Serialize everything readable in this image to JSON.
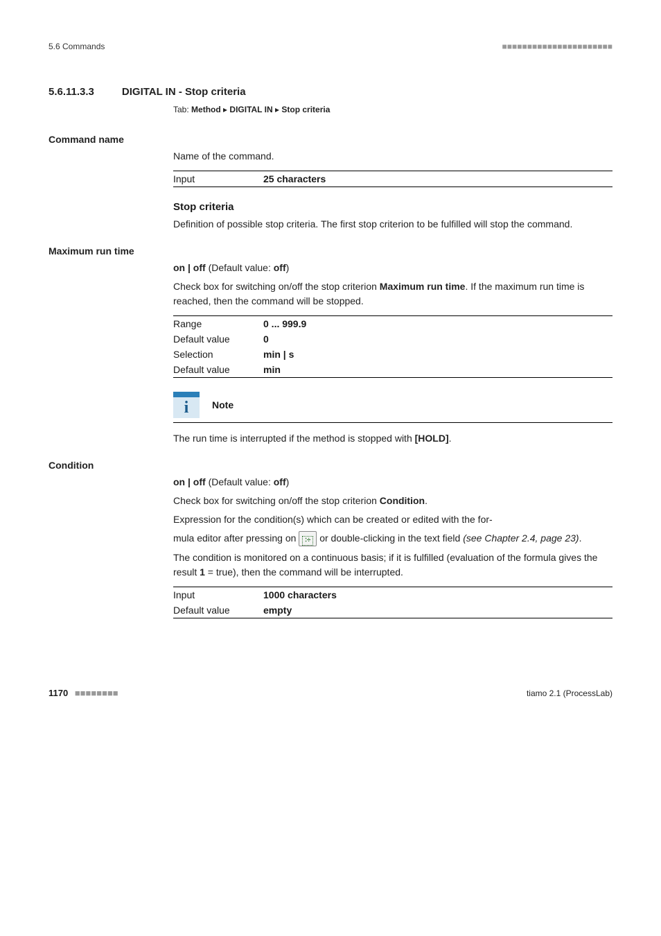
{
  "header": {
    "section": "5.6 Commands",
    "dashes": "■■■■■■■■■■■■■■■■■■■■■■"
  },
  "heading": {
    "number": "5.6.11.3.3",
    "title": "DIGITAL IN - Stop criteria"
  },
  "tab": {
    "prefix": "Tab:",
    "path1": "Method",
    "sep": "▸",
    "path2": "DIGITAL IN",
    "path3": "Stop criteria"
  },
  "command_name": {
    "label": "Command name",
    "desc": "Name of the command.",
    "table": {
      "row1_key": "Input",
      "row1_val": "25 characters"
    }
  },
  "stop_criteria": {
    "label": "Stop criteria",
    "desc": "Definition of possible stop criteria. The first stop criterion to be fulfilled will stop the command."
  },
  "max_run_time": {
    "label": "Maximum run time",
    "onoff_pre": "on | off",
    "onoff_mid": " (Default value: ",
    "onoff_val": "off",
    "onoff_post": ")",
    "desc_pre": "Check box for switching on/off the stop criterion ",
    "desc_bold": "Maximum run time",
    "desc_post": ". If the maximum run time is reached, then the command will be stopped.",
    "table": {
      "r1k": "Range",
      "r1v": "0 ... 999.9",
      "r2k": "Default value",
      "r2v": "0",
      "r3k": "Selection",
      "r3v": "min | s",
      "r4k": "Default value",
      "r4v": "min"
    }
  },
  "note": {
    "label": "Note",
    "icon_letter": "i",
    "text_pre": "The run time is interrupted if the method is stopped with ",
    "text_bold": "[HOLD]",
    "text_post": "."
  },
  "condition": {
    "label": "Condition",
    "onoff_pre": "on | off",
    "onoff_mid": " (Default value: ",
    "onoff_val": "off",
    "onoff_post": ")",
    "desc1_pre": "Check box for switching on/off the stop criterion ",
    "desc1_bold": "Condition",
    "desc1_post": ".",
    "desc2": "Expression for the condition(s) which can be created or edited with the for-",
    "desc3_pre": "mula editor after pressing on ",
    "desc3_post": " or double-clicking in the text field ",
    "desc3_ital": "(see Chapter 2.4, page 23)",
    "desc3_end": ".",
    "desc4_pre": "The condition is monitored on a continuous basis; if it is fulfilled (evaluation of the formula gives the result ",
    "desc4_bold": "1",
    "desc4_post": " = true), then the command will be inter­rupted.",
    "table": {
      "r1k": "Input",
      "r1v": "1000 characters",
      "r2k": "Default value",
      "r2v": "empty"
    },
    "formula_icon_glyph": "∶÷"
  },
  "footer": {
    "page": "1170",
    "dashes": "■■■■■■■■",
    "right": "tiamo 2.1 (ProcessLab)"
  }
}
